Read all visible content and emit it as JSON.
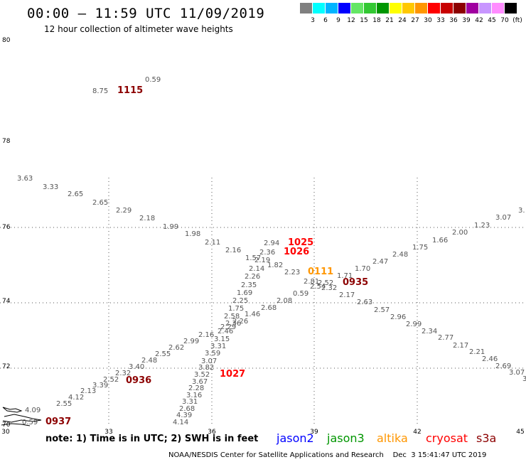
{
  "header": {
    "title": "00:00 – 11:59 UTC 11/09/2019",
    "subtitle": "12 hour collection of altimeter wave heights"
  },
  "legend": {
    "colors": [
      "#808080",
      "#00ffff",
      "#00b4ff",
      "#0000ff",
      "#64e664",
      "#32c832",
      "#009600",
      "#ffff00",
      "#ffc800",
      "#ff9600",
      "#ff0000",
      "#c80000",
      "#8c0000",
      "#a000a0",
      "#c896ff",
      "#ff8cff",
      "#000000"
    ],
    "labels": [
      "3",
      "6",
      "9",
      "12",
      "15",
      "18",
      "21",
      "24",
      "27",
      "30",
      "33",
      "36",
      "39",
      "42",
      "45",
      "70",
      "(ft)"
    ]
  },
  "axes": {
    "x_ticks": [
      "30",
      "33",
      "36",
      "39",
      "42",
      "45"
    ],
    "y_ticks": [
      "70",
      "72",
      "74",
      "76",
      "78",
      "80"
    ]
  },
  "times": [
    {
      "text": "1115",
      "color": "#8c0000"
    },
    {
      "text": "1025",
      "color": "#ff0000"
    },
    {
      "text": "1026",
      "color": "#ff0000"
    },
    {
      "text": "0111",
      "color": "#ff9600"
    },
    {
      "text": "0935",
      "color": "#8c0000"
    },
    {
      "text": "1027",
      "color": "#ff0000"
    },
    {
      "text": "0936",
      "color": "#8c0000"
    },
    {
      "text": "0937",
      "color": "#8c0000"
    }
  ],
  "wave_labels": [
    {
      "t": "8.75",
      "c": "#00b4ff"
    },
    {
      "t": "0.59",
      "c": "#808080"
    },
    {
      "t": "3.63",
      "c": "#00e5ff"
    },
    {
      "t": "3.33",
      "c": "#00e5ff"
    },
    {
      "t": "2.65",
      "c": "#808080"
    },
    {
      "t": "2.65",
      "c": "#808080"
    },
    {
      "t": "2.29",
      "c": "#808080"
    },
    {
      "t": "2.18",
      "c": "#808080"
    },
    {
      "t": "1.99",
      "c": "#808080"
    },
    {
      "t": "1.98",
      "c": "#808080"
    },
    {
      "t": "2.11",
      "c": "#808080"
    },
    {
      "t": "2.16",
      "c": "#808080"
    },
    {
      "t": "2.94",
      "c": "#808080"
    },
    {
      "t": "1.57",
      "c": "#808080"
    },
    {
      "t": "2.36",
      "c": "#808080"
    },
    {
      "t": "2.19",
      "c": "#808080"
    },
    {
      "t": "1.82",
      "c": "#808080"
    },
    {
      "t": "2.14",
      "c": "#808080"
    },
    {
      "t": "2.26",
      "c": "#808080"
    },
    {
      "t": "2.35",
      "c": "#808080"
    },
    {
      "t": "1.69",
      "c": "#808080"
    },
    {
      "t": "2.25",
      "c": "#808080"
    },
    {
      "t": "1.75",
      "c": "#808080"
    },
    {
      "t": "2.68",
      "c": "#808080"
    },
    {
      "t": "2.58",
      "c": "#808080"
    },
    {
      "t": "1.46",
      "c": "#808080"
    },
    {
      "t": "2.26",
      "c": "#808080"
    },
    {
      "t": "2.36",
      "c": "#808080"
    },
    {
      "t": "2.29",
      "c": "#808080"
    },
    {
      "t": "2.46",
      "c": "#808080"
    },
    {
      "t": "2.16",
      "c": "#808080"
    },
    {
      "t": "3.15",
      "c": "#00e5ff"
    },
    {
      "t": "2.99",
      "c": "#808080"
    },
    {
      "t": "3.31",
      "c": "#00e5ff"
    },
    {
      "t": "2.62",
      "c": "#808080"
    },
    {
      "t": "3.59",
      "c": "#00e5ff"
    },
    {
      "t": "2.55",
      "c": "#808080"
    },
    {
      "t": "3.07",
      "c": "#00e5ff"
    },
    {
      "t": "2.48",
      "c": "#808080"
    },
    {
      "t": "3.40",
      "c": "#00e5ff"
    },
    {
      "t": "3.82",
      "c": "#00e5ff"
    },
    {
      "t": "2.32",
      "c": "#808080"
    },
    {
      "t": "3.52",
      "c": "#00e5ff"
    },
    {
      "t": "2.52",
      "c": "#808080"
    },
    {
      "t": "3.67",
      "c": "#00e5ff"
    },
    {
      "t": "3.39",
      "c": "#00e5ff"
    },
    {
      "t": "2.13",
      "c": "#808080"
    },
    {
      "t": "2.28",
      "c": "#808080"
    },
    {
      "t": "4.12",
      "c": "#00e5ff"
    },
    {
      "t": "3.16",
      "c": "#00e5ff"
    },
    {
      "t": "2.55",
      "c": "#808080"
    },
    {
      "t": "3.31",
      "c": "#00e5ff"
    },
    {
      "t": "4.09",
      "c": "#00e5ff"
    },
    {
      "t": "2.68",
      "c": "#808080"
    },
    {
      "t": "4.39",
      "c": "#00e5ff"
    },
    {
      "t": "4.14",
      "c": "#00e5ff"
    },
    {
      "t": "0.59",
      "c": "#808080"
    },
    {
      "t": "2.23",
      "c": "#808080"
    },
    {
      "t": "2.81",
      "c": "#808080"
    },
    {
      "t": "2.52",
      "c": "#808080"
    },
    {
      "t": "1.71",
      "c": "#808080"
    },
    {
      "t": "2.54",
      "c": "#808080"
    },
    {
      "t": "2.32",
      "c": "#808080"
    },
    {
      "t": "0.59",
      "c": "#808080"
    },
    {
      "t": "2.08",
      "c": "#808080"
    },
    {
      "t": "2.17",
      "c": "#808080"
    },
    {
      "t": "1.70",
      "c": "#808080"
    },
    {
      "t": "2.47",
      "c": "#808080"
    },
    {
      "t": "2.48",
      "c": "#808080"
    },
    {
      "t": "1.75",
      "c": "#808080"
    },
    {
      "t": "1.66",
      "c": "#808080"
    },
    {
      "t": "2.00",
      "c": "#808080"
    },
    {
      "t": "1.23",
      "c": "#808080"
    },
    {
      "t": "3.07",
      "c": "#00e5ff"
    },
    {
      "t": "3.",
      "c": "#00e5ff"
    },
    {
      "t": "2.63",
      "c": "#808080"
    },
    {
      "t": "2.57",
      "c": "#808080"
    },
    {
      "t": "2.96",
      "c": "#808080"
    },
    {
      "t": "2.99",
      "c": "#808080"
    },
    {
      "t": "2.34",
      "c": "#808080"
    },
    {
      "t": "2.77",
      "c": "#808080"
    },
    {
      "t": "2.17",
      "c": "#808080"
    },
    {
      "t": "2.21",
      "c": "#808080"
    },
    {
      "t": "2.46",
      "c": "#808080"
    },
    {
      "t": "2.69",
      "c": "#808080"
    },
    {
      "t": "3.07",
      "c": "#00e5ff"
    },
    {
      "t": "3.",
      "c": "#00e5ff"
    }
  ],
  "footer": {
    "note": "note: 1) Time is in UTC; 2) SWH is in feet",
    "satellites": [
      {
        "name": "jason2",
        "color": "#0000ff"
      },
      {
        "name": "jason3",
        "color": "#009600"
      },
      {
        "name": "altika",
        "color": "#ff9600"
      },
      {
        "name": "cryosat",
        "color": "#ff0000"
      },
      {
        "name": "s3a",
        "color": "#8c0000"
      }
    ],
    "credit": "NOAA/NESDIS Center for Satellite Applications and Research    Dec  3 15:41:47 UTC 2019"
  }
}
